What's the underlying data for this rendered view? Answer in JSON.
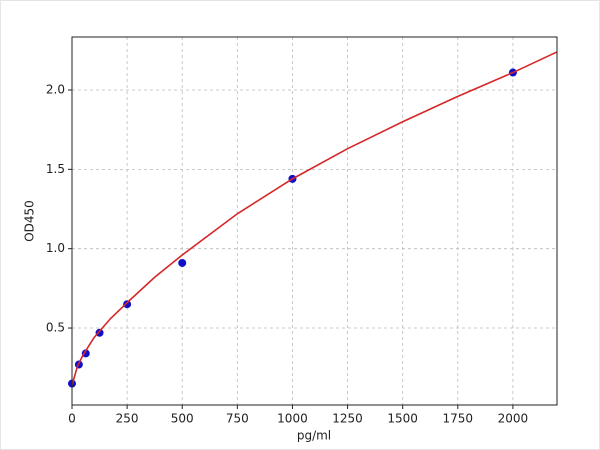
{
  "chart_data": {
    "type": "scatter",
    "xlabel": "pg/ml",
    "ylabel": "OD450",
    "xlim": [
      0,
      2200
    ],
    "ylim": [
      0.015,
      2.334
    ],
    "xticks": [
      0,
      250,
      500,
      750,
      1000,
      1250,
      1500,
      1750,
      2000
    ],
    "yticks": [
      0.5,
      {
        "value": 1,
        "label": "1.0"
      },
      1.5,
      {
        "value": 2,
        "label": "2.0"
      }
    ],
    "grid": true,
    "series": [
      {
        "type": "scatter",
        "color": "#1010c8",
        "x": [
          0,
          31.25,
          62.5,
          125,
          250,
          500,
          1000,
          2000
        ],
        "values": [
          0.15,
          0.27,
          0.34,
          0.47,
          0.65,
          0.91,
          1.44,
          2.11
        ]
      },
      {
        "type": "line",
        "color": "#d62728",
        "x": [
          0,
          25,
          50,
          100,
          175,
          250,
          375,
          500,
          750,
          1000,
          1250,
          1500,
          1750,
          2000,
          2200
        ],
        "values": [
          0.14,
          0.26,
          0.33,
          0.44,
          0.56,
          0.66,
          0.82,
          0.96,
          1.22,
          1.44,
          1.63,
          1.8,
          1.96,
          2.11,
          2.24
        ]
      }
    ]
  }
}
